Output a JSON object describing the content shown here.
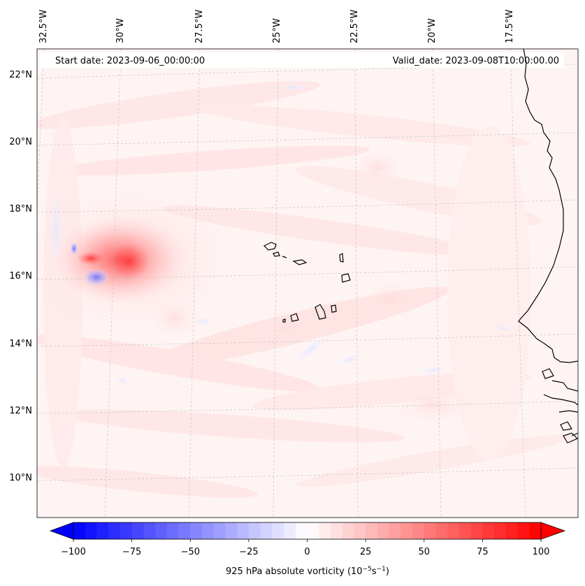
{
  "header": {
    "start_date": "Start date: 2023-09-06_00:00:00",
    "valid_date": "Valid_date: 2023-09-08T10:00:00.00"
  },
  "map": {
    "lon_labels": [
      "32.5°W",
      "30°W",
      "27.5°W",
      "25°W",
      "22.5°W",
      "20°W",
      "17.5°W"
    ],
    "lat_labels": [
      "22°N",
      "20°N",
      "18°N",
      "16°N",
      "14°N",
      "12°N",
      "10°N"
    ],
    "field": "925 hPa absolute vorticity",
    "colormap": "bwr",
    "features": [
      "Cape Verde islands",
      "West African coastline",
      "vorticity maximum near 16.5°N 30°W"
    ]
  },
  "colorbar": {
    "ticks": [
      "−100",
      "−75",
      "−50",
      "−25",
      "0",
      "25",
      "50",
      "75",
      "100"
    ],
    "range": [
      -100,
      100
    ],
    "levels": 41,
    "label_main": "925 hPa absolute vorticity (10",
    "label_exp1": "−5",
    "label_mid": "s",
    "label_exp2": "−1",
    "label_end": ")"
  }
}
